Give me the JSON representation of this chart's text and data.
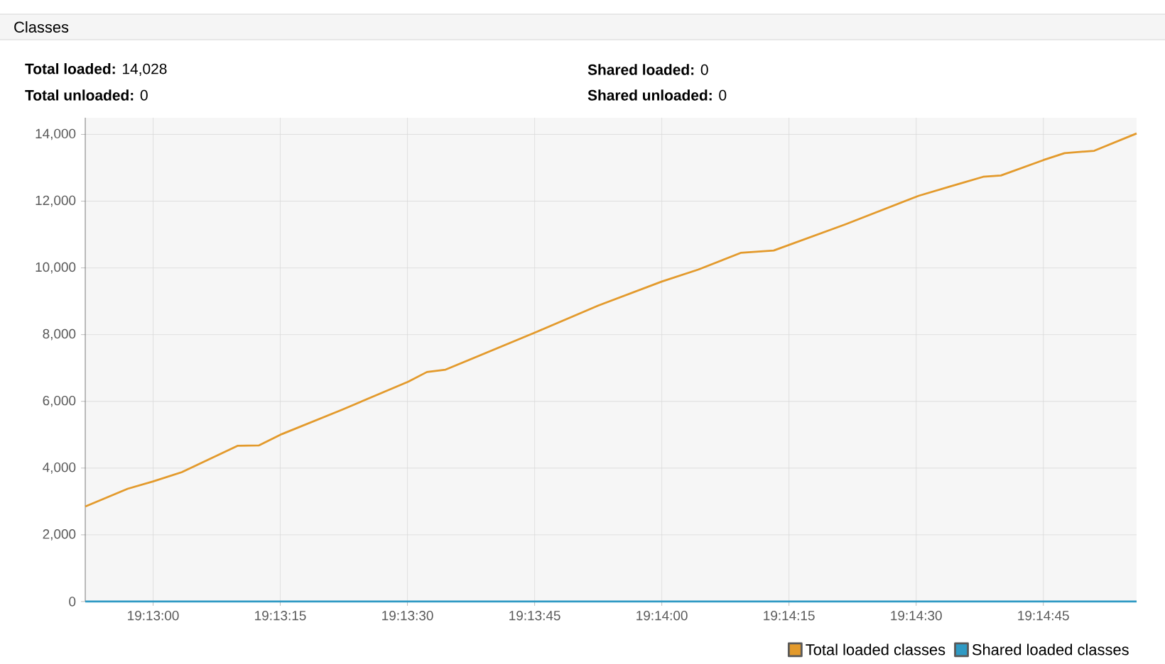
{
  "chart_data": {
    "type": "line",
    "title": "Classes",
    "annotations": [
      "**Total loaded:** 14,028",
      "**Total unloaded:** 0",
      "**Shared loaded:** 0",
      "**Shared unloaded:** 0"
    ],
    "x": [
      19.214444,
      19.215833,
      19.216667,
      19.217611,
      19.219444,
      19.220139,
      19.220889,
      19.222833,
      19.225028,
      19.225639,
      19.22625,
      19.22925,
      19.23125,
      19.233333,
      19.234528,
      19.235917,
      19.237,
      19.239333,
      19.24175,
      19.242778,
      19.243861,
      19.244444,
      19.245833,
      19.246528,
      19.2475,
      19.248889
    ],
    "series": [
      {
        "name": "Total loaded classes",
        "color": "#e39a2c",
        "values": [
          2850,
          3380,
          3600,
          3880,
          4670,
          4680,
          5020,
          5740,
          6590,
          6880,
          6950,
          8090,
          8870,
          9590,
          9950,
          10450,
          10520,
          11300,
          12160,
          12440,
          12730,
          12770,
          13230,
          13440,
          13510,
          14028
        ]
      },
      {
        "name": "Shared loaded classes",
        "color": "#2f9ac4",
        "values": [
          0,
          0,
          0,
          0,
          0,
          0,
          0,
          0,
          0,
          0,
          0,
          0,
          0,
          0,
          0,
          0,
          0,
          0,
          0,
          0,
          0,
          0,
          0,
          0,
          0,
          0
        ]
      }
    ],
    "xlim": [
      19.214444,
      19.248889
    ],
    "xticks": [
      {
        "value": 19.216667,
        "label": "19:13:00"
      },
      {
        "value": 19.220833,
        "label": "19:13:15"
      },
      {
        "value": 19.225,
        "label": "19:13:30"
      },
      {
        "value": 19.229167,
        "label": "19:13:45"
      },
      {
        "value": 19.233333,
        "label": "19:14:00"
      },
      {
        "value": 19.2375,
        "label": "19:14:15"
      },
      {
        "value": 19.241667,
        "label": "19:14:30"
      },
      {
        "value": 19.245833,
        "label": "19:14:45"
      }
    ],
    "ylim": [
      0,
      14500
    ],
    "yticks": [
      0,
      {
        "value": 2000,
        "label": "2,000"
      },
      {
        "value": 4000,
        "label": "4,000"
      },
      {
        "value": 6000,
        "label": "6,000"
      },
      {
        "value": 8000,
        "label": "8,000"
      },
      {
        "value": 10000,
        "label": "10,000"
      },
      {
        "value": 12000,
        "label": "12,000"
      },
      {
        "value": 14000,
        "label": "14,000"
      }
    ],
    "grid": true,
    "legend": "bottom right"
  }
}
